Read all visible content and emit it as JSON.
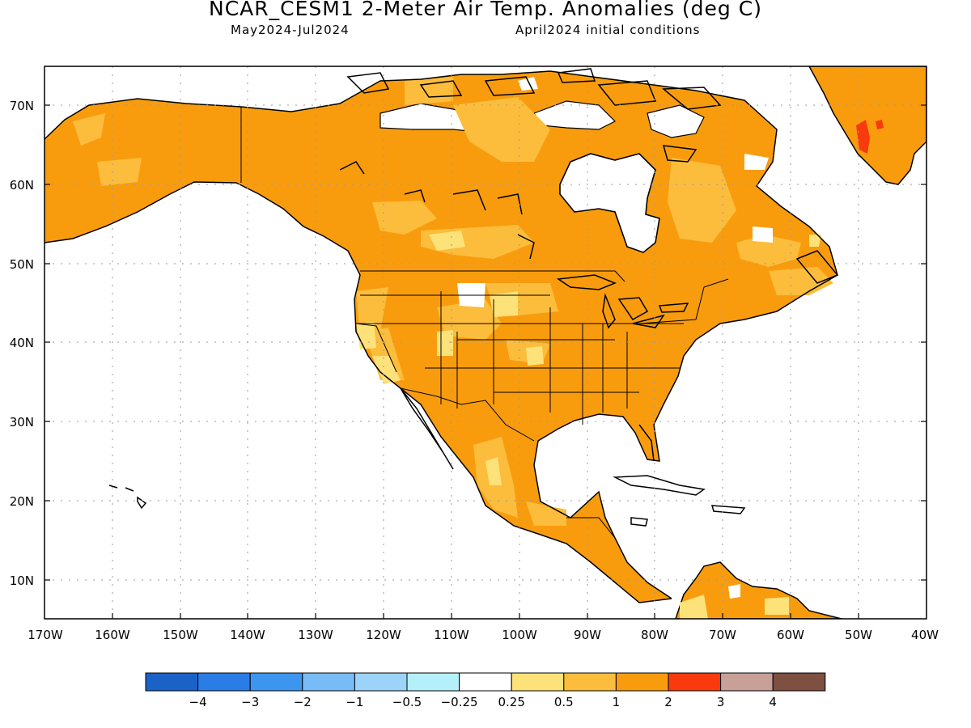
{
  "title": "NCAR_CESM1 2-Meter Air Temp. Anomalies (deg C)",
  "subtitle_left": "May2024-Jul2024",
  "subtitle_right": "April2024 initial conditions",
  "axes": {
    "lat_labels": [
      "70N",
      "60N",
      "50N",
      "40N",
      "30N",
      "20N",
      "10N"
    ],
    "lon_labels": [
      "170W",
      "160W",
      "150W",
      "140W",
      "130W",
      "120W",
      "110W",
      "100W",
      "90W",
      "80W",
      "70W",
      "60W",
      "50W",
      "40W"
    ]
  },
  "map_data": {
    "variable": "2-meter air temperature anomaly",
    "units": "deg C",
    "lon_range": [
      -170,
      -40
    ],
    "lat_range": [
      5,
      75
    ],
    "gridlines": "dotted, every 10 degrees",
    "summary": "warm anomalies (0.25 to 2) over nearly all North American land; 2 to 3 over central Greenland"
  },
  "colorbar": {
    "colors": [
      "#1b62c8",
      "#2a7de6",
      "#3c96f0",
      "#78bcf7",
      "#9cd4f9",
      "#b4f0fa",
      "#ffffff",
      "#fde27a",
      "#fbbd3b",
      "#f89c0e",
      "#f83a0e",
      "#c8a097",
      "#7d5041"
    ],
    "labels": [
      "−4",
      "−3",
      "−2",
      "−1",
      "−0.5",
      "−0.25",
      "0.25",
      "0.5",
      "1",
      "2",
      "3",
      "4"
    ]
  }
}
